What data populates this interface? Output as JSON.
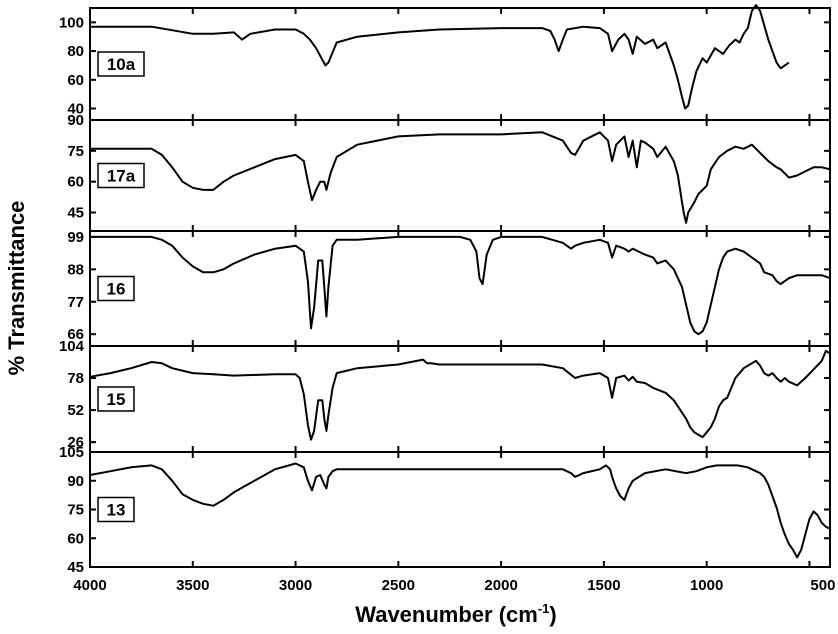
{
  "chart_data": {
    "type": "line",
    "xlabel": "Wavenumber (cm",
    "xlabel_sup": "-1",
    "xlabel_close": ")",
    "ylabel": "% Transmittance",
    "xlim": [
      4000,
      400
    ],
    "x_reversed": true,
    "x_ticks": [
      4000,
      3500,
      3000,
      2500,
      2000,
      1500,
      1000,
      500
    ],
    "panels": [
      {
        "label": "10a",
        "ylim": [
          32,
          110
        ],
        "y_ticks": [
          40,
          60,
          80,
          100
        ],
        "series": [
          {
            "x": [
              4000,
              3700,
              3500,
              3400,
              3300,
              3260,
              3220,
              3100,
              3000,
              2960,
              2930,
              2900,
              2870,
              2855,
              2840,
              2800,
              2700,
              2500,
              2300,
              2000,
              1800,
              1760,
              1740,
              1720,
              1700,
              1680,
              1600,
              1520,
              1480,
              1460,
              1430,
              1400,
              1380,
              1360,
              1340,
              1300,
              1260,
              1240,
              1200,
              1180,
              1160,
              1140,
              1120,
              1105,
              1090,
              1070,
              1050,
              1020,
              1000,
              960,
              920,
              890,
              860,
              840,
              820,
              800,
              790,
              780,
              760,
              740,
              720,
              700,
              680,
              660,
              640,
              620,
              600
            ],
            "y": [
              97,
              97,
              92,
              92,
              93,
              88,
              92,
              95,
              95,
              92,
              88,
              82,
              74,
              70,
              72,
              86,
              90,
              93,
              95,
              96,
              96,
              94,
              88,
              80,
              88,
              95,
              97,
              96,
              92,
              80,
              88,
              92,
              88,
              78,
              90,
              85,
              88,
              82,
              86,
              78,
              70,
              60,
              48,
              40,
              42,
              55,
              66,
              75,
              72,
              82,
              78,
              84,
              88,
              86,
              92,
              96,
              102,
              108,
              112,
              108,
              98,
              88,
              80,
              72,
              68,
              70,
              72
            ]
          }
        ]
      },
      {
        "label": "17a",
        "ylim": [
          36,
          90
        ],
        "y_ticks": [
          45,
          60,
          75,
          90
        ],
        "series": [
          {
            "x": [
              4000,
              3800,
              3700,
              3650,
              3600,
              3550,
              3500,
              3450,
              3400,
              3350,
              3300,
              3200,
              3100,
              3000,
              2960,
              2940,
              2920,
              2900,
              2880,
              2860,
              2850,
              2830,
              2800,
              2700,
              2500,
              2300,
              2000,
              1800,
              1700,
              1660,
              1640,
              1600,
              1520,
              1480,
              1460,
              1440,
              1400,
              1380,
              1360,
              1340,
              1320,
              1300,
              1260,
              1240,
              1200,
              1160,
              1140,
              1120,
              1110,
              1100,
              1090,
              1060,
              1040,
              1000,
              980,
              940,
              900,
              860,
              820,
              780,
              740,
              720,
              700,
              660,
              640,
              620,
              600,
              560,
              520,
              480,
              440,
              400
            ],
            "y": [
              76,
              76,
              76,
              73,
              67,
              60,
              57,
              56,
              56,
              60,
              63,
              67,
              71,
              73,
              70,
              60,
              51,
              56,
              60,
              60,
              56,
              64,
              72,
              78,
              82,
              83,
              83,
              84,
              80,
              74,
              73,
              80,
              84,
              80,
              70,
              78,
              82,
              72,
              80,
              67,
              80,
              79,
              76,
              72,
              77,
              70,
              63,
              50,
              44,
              40,
              45,
              50,
              54,
              58,
              66,
              72,
              75,
              77,
              76,
              78,
              74,
              72,
              70,
              67,
              66,
              64,
              62,
              63,
              65,
              67,
              67,
              66
            ]
          }
        ]
      },
      {
        "label": "16",
        "ylim": [
          62,
          101
        ],
        "y_ticks": [
          66,
          77,
          88,
          99
        ],
        "series": [
          {
            "x": [
              4000,
              3700,
              3650,
              3600,
              3550,
              3500,
              3450,
              3400,
              3350,
              3300,
              3200,
              3100,
              3000,
              2960,
              2940,
              2925,
              2910,
              2890,
              2870,
              2860,
              2850,
              2840,
              2820,
              2800,
              2700,
              2500,
              2300,
              2200,
              2150,
              2120,
              2105,
              2090,
              2070,
              2040,
              2000,
              1800,
              1700,
              1660,
              1640,
              1600,
              1520,
              1480,
              1460,
              1440,
              1400,
              1380,
              1360,
              1300,
              1260,
              1240,
              1200,
              1160,
              1120,
              1100,
              1080,
              1060,
              1040,
              1020,
              1000,
              980,
              960,
              940,
              920,
              900,
              860,
              820,
              780,
              740,
              720,
              680,
              660,
              640,
              620,
              600,
              560,
              520,
              480,
              440,
              400
            ],
            "y": [
              99,
              99,
              98,
              96,
              92,
              89,
              87,
              87,
              88,
              90,
              93,
              95,
              96,
              94,
              84,
              68,
              75,
              91,
              91,
              82,
              72,
              82,
              96,
              98,
              98,
              99,
              99,
              99,
              98,
              94,
              85,
              83,
              93,
              98,
              99,
              99,
              97,
              95,
              96,
              97,
              98,
              97,
              92,
              96,
              95,
              94,
              95,
              93,
              92,
              90,
              91,
              88,
              82,
              76,
              70,
              67,
              66,
              67,
              70,
              76,
              82,
              88,
              92,
              94,
              95,
              94,
              92,
              90,
              87,
              86,
              84,
              83,
              84,
              85,
              86,
              86,
              86,
              86,
              85
            ]
          }
        ]
      },
      {
        "label": "15",
        "ylim": [
          18,
          104
        ],
        "y_ticks": [
          26,
          52,
          78,
          104
        ],
        "series": [
          {
            "x": [
              4000,
              3900,
              3800,
              3700,
              3650,
              3600,
              3500,
              3400,
              3300,
              3100,
              3000,
              2980,
              2960,
              2940,
              2925,
              2910,
              2890,
              2870,
              2860,
              2850,
              2840,
              2820,
              2800,
              2700,
              2500,
              2380,
              2360,
              2340,
              2300,
              2000,
              1800,
              1700,
              1640,
              1600,
              1520,
              1480,
              1460,
              1440,
              1400,
              1380,
              1360,
              1340,
              1300,
              1260,
              1200,
              1160,
              1140,
              1120,
              1100,
              1080,
              1060,
              1040,
              1020,
              1000,
              980,
              960,
              940,
              920,
              900,
              880,
              860,
              840,
              820,
              800,
              780,
              760,
              740,
              720,
              700,
              680,
              660,
              640,
              620,
              600,
              560,
              520,
              480,
              440,
              420,
              400
            ],
            "y": [
              79,
              82,
              86,
              91,
              90,
              86,
              82,
              81,
              80,
              81,
              81,
              78,
              65,
              40,
              28,
              35,
              60,
              60,
              45,
              35,
              48,
              70,
              82,
              86,
              89,
              93,
              90,
              90,
              89,
              89,
              89,
              86,
              78,
              80,
              82,
              78,
              62,
              78,
              80,
              76,
              79,
              75,
              74,
              70,
              66,
              60,
              55,
              50,
              45,
              38,
              34,
              32,
              30,
              34,
              38,
              45,
              55,
              60,
              62,
              70,
              78,
              82,
              86,
              88,
              90,
              92,
              88,
              82,
              80,
              82,
              78,
              75,
              78,
              75,
              72,
              78,
              85,
              92,
              100,
              98
            ]
          }
        ]
      },
      {
        "label": "13",
        "ylim": [
          45,
          105
        ],
        "y_ticks": [
          45,
          60,
          75,
          90,
          105
        ],
        "series": [
          {
            "x": [
              4000,
              3900,
              3800,
              3700,
              3650,
              3600,
              3550,
              3500,
              3450,
              3400,
              3350,
              3300,
              3200,
              3100,
              3000,
              2960,
              2940,
              2920,
              2900,
              2880,
              2860,
              2850,
              2840,
              2820,
              2800,
              2700,
              2500,
              2300,
              2000,
              1800,
              1700,
              1660,
              1640,
              1600,
              1520,
              1490,
              1470,
              1460,
              1440,
              1420,
              1400,
              1380,
              1360,
              1300,
              1200,
              1100,
              1050,
              1000,
              950,
              900,
              850,
              800,
              780,
              760,
              740,
              720,
              700,
              680,
              660,
              640,
              620,
              600,
              580,
              560,
              540,
              520,
              500,
              480,
              460,
              440,
              420,
              400
            ],
            "y": [
              93,
              95,
              97,
              98,
              96,
              90,
              83,
              80,
              78,
              77,
              80,
              84,
              90,
              96,
              99,
              97,
              90,
              85,
              92,
              93,
              88,
              86,
              92,
              95,
              96,
              96,
              96,
              96,
              96,
              96,
              96,
              94,
              92,
              94,
              96,
              98,
              96,
              92,
              86,
              82,
              80,
              86,
              90,
              94,
              96,
              94,
              95,
              97,
              98,
              98,
              98,
              97,
              96,
              95,
              94,
              92,
              88,
              82,
              76,
              68,
              62,
              57,
              54,
              50,
              54,
              62,
              70,
              74,
              72,
              68,
              66,
              65
            ]
          }
        ]
      }
    ]
  }
}
